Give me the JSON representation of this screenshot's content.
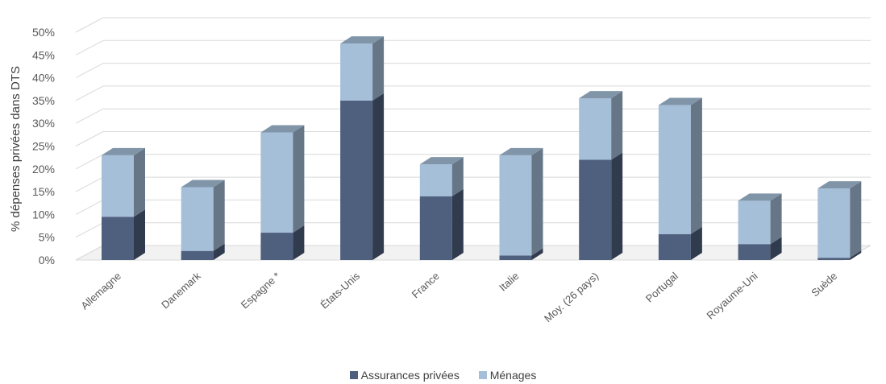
{
  "chart_data": {
    "type": "bar",
    "stacked": true,
    "three_d": true,
    "categories": [
      "Allemagne",
      "Danemark",
      "Espagne *",
      "États-Unis",
      "France",
      "Italie",
      "Moy. (26 pays)",
      "Portugal",
      "Royaume-Uni",
      "Suède"
    ],
    "series": [
      {
        "name": "Assurances privées",
        "color": "#4F5F7E",
        "values": [
          9.5,
          2,
          6,
          35,
          14,
          1,
          22,
          5.7,
          3.5,
          0.5
        ]
      },
      {
        "name": "Ménages",
        "color": "#A5BFD9",
        "values": [
          13.5,
          14,
          22,
          12.5,
          7,
          22,
          13.5,
          28.3,
          9.5,
          15.2
        ]
      }
    ],
    "ylabel": "% dépenses privées dans DTS",
    "ylim": [
      0,
      50
    ],
    "y_ticks": [
      "0%",
      "5%",
      "10%",
      "15%",
      "20%",
      "25%",
      "30%",
      "35%",
      "40%",
      "45%",
      "50%"
    ],
    "grid": true,
    "legend_position": "bottom"
  }
}
